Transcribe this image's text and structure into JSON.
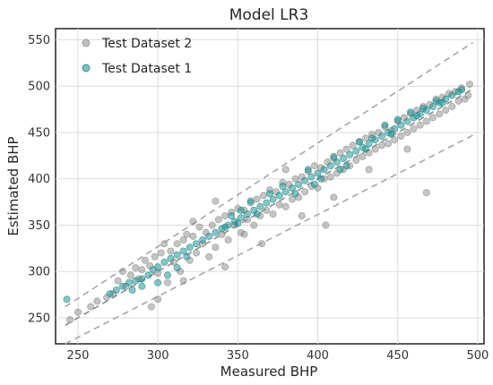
{
  "chart_data": {
    "type": "scatter",
    "title": "Model LR3",
    "xlabel": "Measured BHP",
    "ylabel": "Estimated BHP",
    "xlim": [
      236,
      504
    ],
    "ylim": [
      222,
      562
    ],
    "xticks": [
      250,
      300,
      350,
      400,
      450,
      500
    ],
    "yticks": [
      250,
      300,
      350,
      400,
      450,
      500,
      550
    ],
    "grid": true,
    "legend_position": "top-left",
    "series": [
      {
        "name": "Test Dataset 2",
        "color": "#8c8c8c",
        "points": [
          [
            245,
            248
          ],
          [
            250,
            256
          ],
          [
            258,
            262
          ],
          [
            262,
            268
          ],
          [
            268,
            272
          ],
          [
            272,
            276
          ],
          [
            275,
            290
          ],
          [
            278,
            300
          ],
          [
            280,
            284
          ],
          [
            283,
            296
          ],
          [
            286,
            304
          ],
          [
            288,
            292
          ],
          [
            290,
            302
          ],
          [
            292,
            312
          ],
          [
            295,
            306
          ],
          [
            298,
            316
          ],
          [
            300,
            298
          ],
          [
            302,
            320
          ],
          [
            304,
            330
          ],
          [
            306,
            288
          ],
          [
            308,
            322
          ],
          [
            310,
            310
          ],
          [
            312,
            330
          ],
          [
            314,
            300
          ],
          [
            316,
            334
          ],
          [
            318,
            340
          ],
          [
            320,
            312
          ],
          [
            322,
            338
          ],
          [
            324,
            320
          ],
          [
            326,
            348
          ],
          [
            328,
            330
          ],
          [
            330,
            342
          ],
          [
            332,
            316
          ],
          [
            334,
            350
          ],
          [
            336,
            326
          ],
          [
            338,
            356
          ],
          [
            340,
            340
          ],
          [
            342,
            360
          ],
          [
            344,
            334
          ],
          [
            346,
            364
          ],
          [
            348,
            350
          ],
          [
            350,
            368
          ],
          [
            352,
            342
          ],
          [
            354,
            366
          ],
          [
            356,
            356
          ],
          [
            358,
            374
          ],
          [
            360,
            350
          ],
          [
            362,
            378
          ],
          [
            364,
            360
          ],
          [
            366,
            382
          ],
          [
            368,
            366
          ],
          [
            370,
            388
          ],
          [
            372,
            362
          ],
          [
            374,
            386
          ],
          [
            376,
            372
          ],
          [
            378,
            396
          ],
          [
            380,
            370
          ],
          [
            382,
            394
          ],
          [
            384,
            378
          ],
          [
            386,
            400
          ],
          [
            388,
            380
          ],
          [
            390,
            402
          ],
          [
            392,
            386
          ],
          [
            394,
            408
          ],
          [
            396,
            392
          ],
          [
            398,
            414
          ],
          [
            400,
            390
          ],
          [
            402,
            412
          ],
          [
            404,
            400
          ],
          [
            406,
            418
          ],
          [
            408,
            402
          ],
          [
            410,
            422
          ],
          [
            412,
            406
          ],
          [
            414,
            428
          ],
          [
            416,
            410
          ],
          [
            418,
            432
          ],
          [
            420,
            414
          ],
          [
            422,
            436
          ],
          [
            424,
            420
          ],
          [
            426,
            440
          ],
          [
            428,
            424
          ],
          [
            430,
            444
          ],
          [
            432,
            428
          ],
          [
            434,
            448
          ],
          [
            436,
            432
          ],
          [
            438,
            450
          ],
          [
            440,
            436
          ],
          [
            442,
            456
          ],
          [
            444,
            438
          ],
          [
            446,
            452
          ],
          [
            448,
            442
          ],
          [
            450,
            462
          ],
          [
            452,
            446
          ],
          [
            454,
            466
          ],
          [
            456,
            450
          ],
          [
            458,
            470
          ],
          [
            460,
            454
          ],
          [
            462,
            474
          ],
          [
            464,
            458
          ],
          [
            466,
            478
          ],
          [
            468,
            462
          ],
          [
            470,
            480
          ],
          [
            472,
            466
          ],
          [
            474,
            486
          ],
          [
            476,
            470
          ],
          [
            478,
            488
          ],
          [
            480,
            474
          ],
          [
            482,
            492
          ],
          [
            484,
            478
          ],
          [
            486,
            494
          ],
          [
            488,
            484
          ],
          [
            490,
            498
          ],
          [
            492,
            486
          ],
          [
            494,
            490
          ],
          [
            495,
            502
          ],
          [
            468,
            385
          ],
          [
            296,
            262
          ],
          [
            300,
            270
          ],
          [
            405,
            350
          ],
          [
            365,
            330
          ],
          [
            322,
            354
          ],
          [
            342,
            305
          ],
          [
            316,
            290
          ],
          [
            432,
            410
          ],
          [
            456,
            432
          ],
          [
            336,
            376
          ],
          [
            354,
            340
          ],
          [
            380,
            410
          ],
          [
            390,
            360
          ],
          [
            410,
            380
          ]
        ]
      },
      {
        "name": "Test Dataset 1",
        "color": "#1a8a8a",
        "points": [
          [
            243,
            270
          ],
          [
            270,
            276
          ],
          [
            274,
            280
          ],
          [
            278,
            284
          ],
          [
            282,
            288
          ],
          [
            286,
            290
          ],
          [
            290,
            292
          ],
          [
            294,
            296
          ],
          [
            297,
            302
          ],
          [
            300,
            305
          ],
          [
            304,
            310
          ],
          [
            308,
            314
          ],
          [
            312,
            318
          ],
          [
            316,
            322
          ],
          [
            320,
            326
          ],
          [
            324,
            330
          ],
          [
            328,
            334
          ],
          [
            332,
            338
          ],
          [
            336,
            342
          ],
          [
            340,
            346
          ],
          [
            344,
            350
          ],
          [
            348,
            354
          ],
          [
            352,
            358
          ],
          [
            356,
            362
          ],
          [
            360,
            366
          ],
          [
            364,
            370
          ],
          [
            368,
            374
          ],
          [
            372,
            378
          ],
          [
            376,
            382
          ],
          [
            380,
            386
          ],
          [
            384,
            390
          ],
          [
            388,
            394
          ],
          [
            392,
            398
          ],
          [
            396,
            402
          ],
          [
            400,
            406
          ],
          [
            404,
            410
          ],
          [
            408,
            414
          ],
          [
            412,
            418
          ],
          [
            416,
            422
          ],
          [
            420,
            426
          ],
          [
            424,
            430
          ],
          [
            428,
            434
          ],
          [
            432,
            438
          ],
          [
            436,
            442
          ],
          [
            440,
            446
          ],
          [
            444,
            450
          ],
          [
            448,
            454
          ],
          [
            452,
            458
          ],
          [
            456,
            462
          ],
          [
            460,
            466
          ],
          [
            464,
            470
          ],
          [
            468,
            474
          ],
          [
            472,
            478
          ],
          [
            476,
            482
          ],
          [
            480,
            486
          ],
          [
            484,
            490
          ],
          [
            488,
            494
          ],
          [
            490,
            496
          ],
          [
            346,
            360
          ],
          [
            352,
            366
          ],
          [
            358,
            376
          ],
          [
            362,
            362
          ],
          [
            370,
            384
          ],
          [
            378,
            392
          ],
          [
            386,
            384
          ],
          [
            394,
            410
          ],
          [
            402,
            400
          ],
          [
            410,
            424
          ],
          [
            418,
            414
          ],
          [
            426,
            440
          ],
          [
            434,
            444
          ],
          [
            442,
            458
          ],
          [
            450,
            464
          ],
          [
            458,
            472
          ],
          [
            466,
            476
          ],
          [
            474,
            484
          ],
          [
            300,
            288
          ],
          [
            306,
            296
          ],
          [
            312,
            304
          ],
          [
            318,
            316
          ],
          [
            284,
            280
          ],
          [
            290,
            284
          ],
          [
            342,
            348
          ],
          [
            350,
            352
          ],
          [
            398,
            394
          ],
          [
            414,
            410
          ],
          [
            430,
            432
          ],
          [
            446,
            448
          ],
          [
            462,
            468
          ],
          [
            478,
            482
          ]
        ]
      }
    ],
    "reference_lines": [
      {
        "style": "dashed",
        "color": "#8c8c8c",
        "points": [
          [
            242,
            242
          ],
          [
            497,
            497
          ]
        ]
      },
      {
        "style": "dashed",
        "color": "#a6a6a6",
        "points": [
          [
            242,
            222
          ],
          [
            497,
            447
          ]
        ]
      },
      {
        "style": "dashed",
        "color": "#a6a6a6",
        "points": [
          [
            242,
            262
          ],
          [
            497,
            547
          ]
        ]
      }
    ]
  }
}
